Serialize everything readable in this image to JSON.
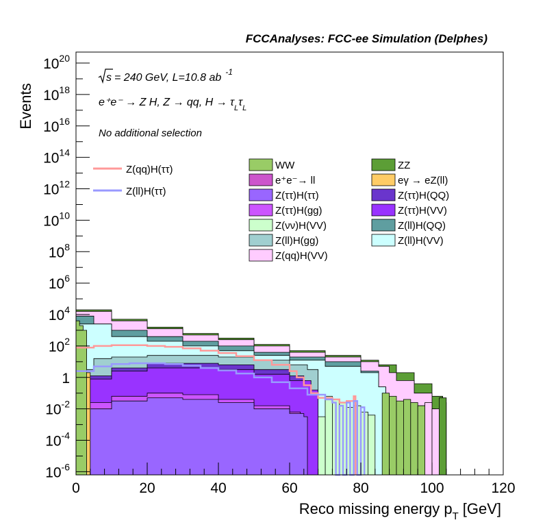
{
  "chart_data": {
    "type": "histogram",
    "title": "FCCAnalyses: FCC-ee Simulation (Delphes)",
    "annotations": {
      "energy_prefix": "s",
      "energy_suffix": "= 240 GeV, L=10.8 ab",
      "lumi_exponent": "-1",
      "process": "e⁺e⁻ → Z H, Z → qq, H → τ",
      "process_sub1": "L",
      "process_tau2": "τ",
      "process_sub2": "L",
      "selection": "No additional selection"
    },
    "xlabel": "Reco missing energy p",
    "xlabel_sub": "T",
    "xlabel_unit": "[GeV]",
    "ylabel": "Events",
    "xlim": [
      0,
      120
    ],
    "ylog": true,
    "ylim_exp": [
      -6.2,
      20.7
    ],
    "x_ticks": [
      "0",
      "20",
      "40",
      "60",
      "80",
      "100",
      "120"
    ],
    "y_ticks": [
      {
        "exp": 20,
        "label": "10",
        "sup": "20"
      },
      {
        "exp": 18,
        "label": "10",
        "sup": "18"
      },
      {
        "exp": 16,
        "label": "10",
        "sup": "16"
      },
      {
        "exp": 14,
        "label": "10",
        "sup": "14"
      },
      {
        "exp": 12,
        "label": "10",
        "sup": "12"
      },
      {
        "exp": 10,
        "label": "10",
        "sup": "10"
      },
      {
        "exp": 8,
        "label": "10",
        "sup": "8"
      },
      {
        "exp": 6,
        "label": "10",
        "sup": "6"
      },
      {
        "exp": 4,
        "label": "10",
        "sup": "4"
      },
      {
        "exp": 2,
        "label": "10",
        "sup": "2"
      },
      {
        "exp": 0,
        "label": "1",
        "sup": ""
      },
      {
        "exp": -2,
        "label": "10",
        "sup": "-2"
      },
      {
        "exp": -4,
        "label": "10",
        "sup": "-4"
      },
      {
        "exp": -6,
        "label": "10",
        "sup": "-6"
      }
    ],
    "stack_layers": [
      {
        "name": "Z(ll)H(VV)",
        "color": "#ccffff",
        "points": [
          [
            0,
            3.4
          ],
          [
            10,
            2.6
          ],
          [
            20,
            2.3
          ],
          [
            30,
            2.0
          ],
          [
            40,
            1.7
          ],
          [
            50,
            1.4
          ],
          [
            60,
            1.1
          ],
          [
            70,
            0.7
          ],
          [
            80,
            0.3
          ],
          [
            85,
            -0.6
          ],
          [
            87,
            -6.2
          ]
        ]
      },
      {
        "name": "Z(ll)H(QQ)",
        "color": "#5f9ea0",
        "points": [
          [
            0,
            3.9
          ],
          [
            5,
            3.4
          ],
          [
            10,
            3.0
          ],
          [
            20,
            2.6
          ],
          [
            30,
            2.3
          ],
          [
            40,
            2.0
          ],
          [
            50,
            1.6
          ],
          [
            60,
            1.3
          ],
          [
            70,
            1.0
          ],
          [
            80,
            0.4
          ],
          [
            85,
            -0.6
          ],
          [
            87,
            -6.2
          ]
        ]
      },
      {
        "name": "Z(qq)H(VV)",
        "color": "#ffccff",
        "points": [
          [
            0,
            4.2
          ],
          [
            10,
            3.6
          ],
          [
            20,
            3.1
          ],
          [
            30,
            2.7
          ],
          [
            40,
            2.4
          ],
          [
            50,
            2.0
          ],
          [
            60,
            1.6
          ],
          [
            70,
            1.3
          ],
          [
            80,
            1.0
          ],
          [
            85,
            0.7
          ],
          [
            88,
            0.3
          ],
          [
            90,
            -0.2
          ],
          [
            95,
            -1.0
          ],
          [
            100,
            -2.0
          ],
          [
            101,
            -6.2
          ]
        ]
      },
      {
        "name": "ZZ",
        "color": "#5c9e36",
        "points": [
          [
            0,
            4.3
          ],
          [
            10,
            3.7
          ],
          [
            20,
            3.2
          ],
          [
            30,
            2.8
          ],
          [
            40,
            2.5
          ],
          [
            50,
            2.1
          ],
          [
            60,
            1.7
          ],
          [
            70,
            1.4
          ],
          [
            80,
            1.1
          ],
          [
            85,
            0.8
          ],
          [
            90,
            0.3
          ],
          [
            95,
            -0.4
          ],
          [
            100,
            -1.2
          ],
          [
            103,
            -1.6
          ],
          [
            104,
            -6.2
          ]
        ]
      }
    ],
    "overlay_fills": [
      {
        "name": "Z(νν)H(VV)",
        "color": "#ccffcc",
        "points": [
          [
            0,
            -0.5
          ],
          [
            10,
            0.2
          ],
          [
            20,
            0.5
          ],
          [
            30,
            0.5
          ],
          [
            40,
            0.3
          ],
          [
            50,
            -0.1
          ],
          [
            60,
            -0.8
          ],
          [
            62,
            -1.3
          ],
          [
            65,
            -2.0
          ],
          [
            68,
            -2.5
          ],
          [
            70,
            -6.2
          ]
        ]
      },
      {
        "name": "Z(ll)H(gg)",
        "color": "#a0cfd0",
        "points": [
          [
            0,
            0.5
          ],
          [
            5,
            1.2
          ],
          [
            10,
            1.3
          ],
          [
            20,
            1.4
          ],
          [
            30,
            1.4
          ],
          [
            40,
            1.3
          ],
          [
            50,
            1.1
          ],
          [
            60,
            0.8
          ],
          [
            65,
            0.5
          ],
          [
            68,
            -6.2
          ]
        ]
      },
      {
        "name": "Z(ττ)H(QQ)",
        "color": "#6a35cc",
        "points": [
          [
            0,
            0.1
          ],
          [
            10,
            0.6
          ],
          [
            20,
            0.9
          ],
          [
            30,
            0.9
          ],
          [
            40,
            0.8
          ],
          [
            50,
            0.5
          ],
          [
            60,
            0.1
          ],
          [
            64,
            -0.5
          ],
          [
            66,
            -6.2
          ]
        ]
      },
      {
        "name": "Z(ττ)H(VV)",
        "color": "#9933ff",
        "points": [
          [
            0,
            -0.1
          ],
          [
            10,
            0.4
          ],
          [
            20,
            0.6
          ],
          [
            30,
            0.6
          ],
          [
            40,
            0.5
          ],
          [
            50,
            0.2
          ],
          [
            60,
            -0.2
          ],
          [
            66,
            -0.8
          ],
          [
            68,
            -6.2
          ]
        ]
      },
      {
        "name": "Z(ττ)H(gg)",
        "color": "#cc55ff",
        "points": [
          [
            0,
            -1.6
          ],
          [
            10,
            -1.2
          ],
          [
            20,
            -1.0
          ],
          [
            30,
            -1.1
          ],
          [
            40,
            -1.4
          ],
          [
            50,
            -1.8
          ],
          [
            60,
            -2.2
          ],
          [
            63,
            -6.2
          ]
        ]
      },
      {
        "name": "Z(ττ)H(ττ)",
        "color": "#9966ff",
        "points": [
          [
            0,
            -2.0
          ],
          [
            10,
            -1.5
          ],
          [
            20,
            -1.3
          ],
          [
            30,
            -1.4
          ],
          [
            40,
            -1.6
          ],
          [
            50,
            -2.0
          ],
          [
            60,
            -2.3
          ],
          [
            64,
            -2.5
          ],
          [
            65,
            -6.2
          ]
        ]
      }
    ],
    "low_x_fills": [
      {
        "name": "eγ → eZ(ll)",
        "color": "#ffcc66",
        "points": [
          [
            0,
            2.1
          ],
          [
            1,
            1.4
          ],
          [
            2,
            0.9
          ],
          [
            3,
            0.3
          ],
          [
            4,
            -6.2
          ]
        ]
      },
      {
        "name": "e⁺e⁻→ ll",
        "color": "#cc55cc",
        "points": [
          [
            0,
            3.2
          ],
          [
            1,
            2.6
          ],
          [
            2,
            2.0
          ],
          [
            3,
            -6.2
          ]
        ]
      },
      {
        "name": "WW",
        "color": "#99cc66",
        "points": [
          [
            0,
            3.6
          ],
          [
            1,
            3.3
          ],
          [
            2,
            3.0
          ],
          [
            3,
            -6.2
          ]
        ]
      }
    ],
    "spikes": [
      {
        "name": "Z(νν)H(VV)",
        "color": "#ccffcc",
        "x0": 70,
        "x1": 84,
        "heights": [
          -1.2,
          -1.4,
          -1.6,
          -1.9,
          -1.8,
          -2.2,
          -2.4
        ],
        "edge": "#000000"
      },
      {
        "name": "Z(qq)H(VV)",
        "color": "#ffccff",
        "x0": 96,
        "x1": 102,
        "heights": [
          -1.8,
          -1.6,
          -2.0
        ],
        "edge": "#000000"
      },
      {
        "name": "ZZ",
        "color": "#5c9e36",
        "x0": 102,
        "x1": 104,
        "heights": [
          -1.3
        ],
        "edge": "#000000"
      },
      {
        "name": "WW",
        "color": "#99cc66",
        "x0": 86,
        "x1": 98,
        "heights": [
          -1.0,
          -1.2,
          -1.5,
          -1.4,
          -1.6,
          -1.8
        ],
        "edge": "#000000"
      }
    ],
    "line_series": [
      {
        "name": "Z(qq)H(ττ)",
        "color": "#ff9999",
        "points": [
          [
            0,
            1.9
          ],
          [
            5,
            2.0
          ],
          [
            10,
            2.05
          ],
          [
            15,
            2.05
          ],
          [
            20,
            2.0
          ],
          [
            25,
            1.95
          ],
          [
            30,
            1.85
          ],
          [
            35,
            1.7
          ],
          [
            40,
            1.55
          ],
          [
            45,
            1.35
          ],
          [
            50,
            1.1
          ],
          [
            55,
            0.8
          ],
          [
            60,
            0.4
          ],
          [
            62,
            0.0
          ],
          [
            64,
            -0.5
          ],
          [
            66,
            -1.0
          ],
          [
            68,
            -1.3
          ],
          [
            70,
            -1.3
          ],
          [
            72,
            -1.4
          ],
          [
            74,
            -1.6
          ],
          [
            76,
            -1.5
          ],
          [
            78,
            -1.2
          ],
          [
            78.5,
            -6.2
          ]
        ]
      },
      {
        "name": "Z(ll)H(ττ)",
        "color": "#9999ff",
        "points": [
          [
            0,
            0.4
          ],
          [
            5,
            0.7
          ],
          [
            10,
            0.85
          ],
          [
            15,
            0.9
          ],
          [
            20,
            0.9
          ],
          [
            25,
            0.85
          ],
          [
            30,
            0.75
          ],
          [
            35,
            0.6
          ],
          [
            40,
            0.45
          ],
          [
            45,
            0.25
          ],
          [
            50,
            0.0
          ],
          [
            55,
            -0.3
          ],
          [
            60,
            -0.7
          ],
          [
            65,
            -1.1
          ],
          [
            70,
            -1.4
          ],
          [
            72,
            -1.6
          ],
          [
            73,
            -6.2
          ],
          [
            74,
            -1.8
          ],
          [
            75,
            -6.2
          ],
          [
            76,
            -1.6
          ],
          [
            77,
            -6.2
          ],
          [
            78,
            -1.5
          ],
          [
            79,
            -6.2
          ],
          [
            80,
            -1.9
          ],
          [
            81,
            -6.2
          ]
        ]
      }
    ],
    "legend_lines": [
      {
        "name": "Z(qq)H(ττ)",
        "color": "#ff9999"
      },
      {
        "name": "Z(ll)H(ττ)",
        "color": "#9999ff"
      }
    ],
    "legend_stack": [
      {
        "name": "WW",
        "color": "#99cc66"
      },
      {
        "name": "ZZ",
        "color": "#5c9e36"
      },
      {
        "name": "e⁺e⁻→ ll",
        "color": "#cc55cc"
      },
      {
        "name": "eγ → eZ(ll)",
        "color": "#ffcc66"
      },
      {
        "name": "Z(ττ)H(ττ)",
        "color": "#9966ff"
      },
      {
        "name": "Z(ττ)H(QQ)",
        "color": "#6a35cc"
      },
      {
        "name": "Z(ττ)H(gg)",
        "color": "#cc55ff"
      },
      {
        "name": "Z(ττ)H(VV)",
        "color": "#9933ff"
      },
      {
        "name": "Z(νν)H(VV)",
        "color": "#ccffcc"
      },
      {
        "name": "Z(ll)H(QQ)",
        "color": "#5f9ea0"
      },
      {
        "name": "Z(ll)H(gg)",
        "color": "#a0cfd0"
      },
      {
        "name": "Z(ll)H(VV)",
        "color": "#ccffff"
      },
      {
        "name": "Z(qq)H(VV)",
        "color": "#ffccff"
      }
    ]
  }
}
